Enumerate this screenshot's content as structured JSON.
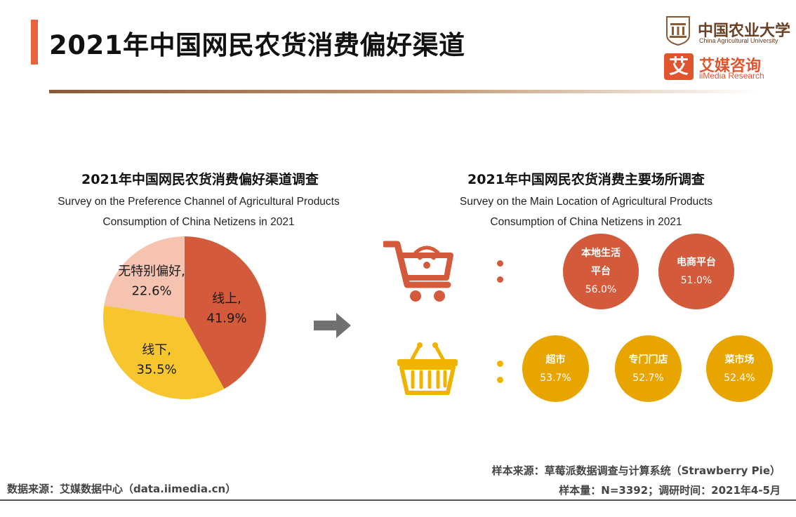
{
  "header": {
    "title": "2021年中国网民农货消费偏好渠道",
    "cau_name_cn": "中国农业大学",
    "cau_name_en": "China Agricultural University",
    "ii_logo_char": "艾",
    "ii_name_cn": "艾媒咨询",
    "ii_name_en": "iiMedia Research",
    "accent_color": "#e8643a"
  },
  "left_chart": {
    "title_cn": "2021年中国网民农货消费偏好渠道调查",
    "subtitle_en_1": "Survey on the Preference Channel of Agricultural Products",
    "subtitle_en_2": "Consumption of China Netizens in 2021"
  },
  "right_chart": {
    "title_cn": "2021年中国网民农货消费主要场所调查",
    "subtitle_en_1": "Survey on the Main Location of Agricultural Products",
    "subtitle_en_2": "Consumption of China Netizens in 2021"
  },
  "chart_data": [
    {
      "type": "pie",
      "title": "2021年中国网民农货消费偏好渠道调查",
      "slices": [
        {
          "label": "线上,",
          "value": 41.9,
          "value_text": "41.9%",
          "color": "#d35a3b",
          "label_color": "#1a1a1a"
        },
        {
          "label": "线下,",
          "value": 35.5,
          "value_text": "35.5%",
          "color": "#f7c62f",
          "label_color": "#1a1a1a"
        },
        {
          "label": "无特别偏好,",
          "value": 22.6,
          "value_text": "22.6%",
          "color": "#f5c3b0",
          "label_color": "#1a1a1a"
        }
      ]
    },
    {
      "type": "bubble",
      "title": "2021年中国网民农货消费主要场所调查",
      "groups": [
        {
          "icon": "shopping-cart-wifi-icon",
          "color": "#d35a3b",
          "items": [
            {
              "label": "本地生活平台",
              "label_lines": [
                "本地生活",
                "平台"
              ],
              "value": 56.0,
              "value_text": "56.0%"
            },
            {
              "label": "电商平台",
              "label_lines": [
                "电商平台"
              ],
              "value": 51.0,
              "value_text": "51.0%"
            }
          ]
        },
        {
          "icon": "shopping-basket-icon",
          "color": "#e8a500",
          "items": [
            {
              "label": "超市",
              "label_lines": [
                "超市"
              ],
              "value": 53.7,
              "value_text": "53.7%"
            },
            {
              "label": "专门门店",
              "label_lines": [
                "专门门店"
              ],
              "value": 52.7,
              "value_text": "52.7%"
            },
            {
              "label": "菜市场",
              "label_lines": [
                "菜市场"
              ],
              "value": 52.4,
              "value_text": "52.4%"
            }
          ]
        }
      ]
    }
  ],
  "footer": {
    "sample_source": "样本来源：草莓派数据调查与计算系统（Strawberry Pie）",
    "sample_size": "样本量：N=3392；调研时间：2021年4-5月",
    "data_source": "数据来源：艾媒数据中心（data.iimedia.cn）"
  }
}
